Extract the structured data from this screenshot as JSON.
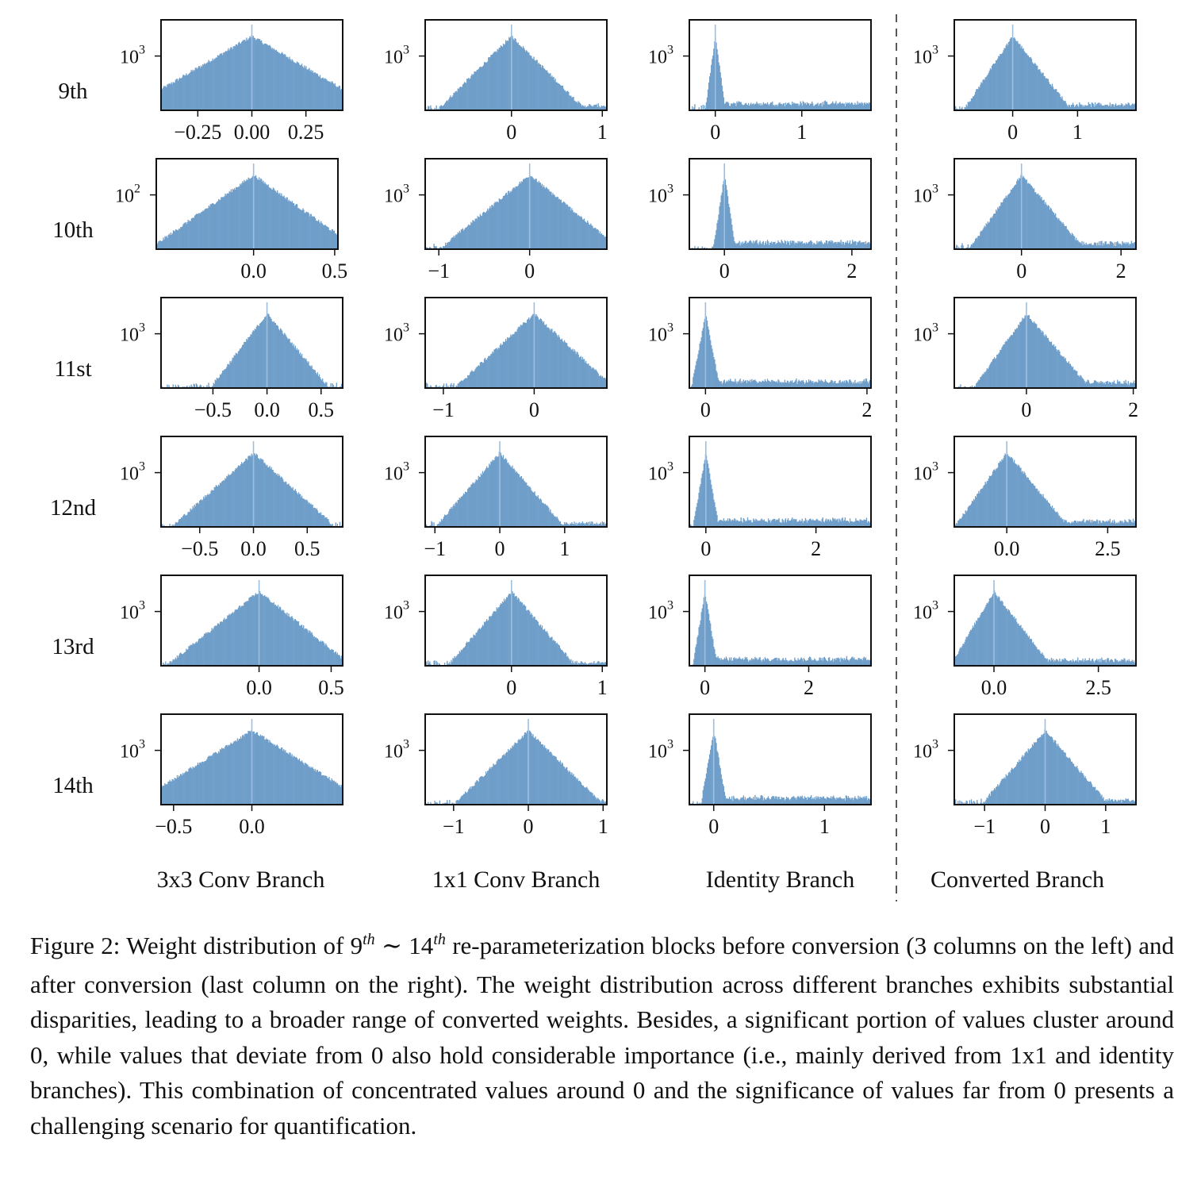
{
  "chart_data": {
    "type": "bar",
    "title": "",
    "y_scale": "log",
    "grid": false,
    "bar_color": "#6f9ec9",
    "separator_style": "dashed vertical line between 3rd and 4th columns",
    "rows": [
      "9th",
      "10th",
      "11st",
      "12nd",
      "13rd",
      "14th"
    ],
    "columns": [
      "3x3 Conv Branch",
      "1x1 Conv Branch",
      "Identity Branch",
      "Converted Branch"
    ],
    "panels": [
      [
        {
          "x_range": [
            -0.42,
            0.42
          ],
          "ticks": [
            -0.25,
            0.0,
            0.25
          ],
          "tick_labels": [
            "−0.25",
            "0.00",
            "0.25"
          ],
          "ytick": "10^3",
          "center": 0.0,
          "spread": 0.1,
          "skew": 1.0,
          "right_tail": 0,
          "spike": 1
        },
        {
          "x_range": [
            -0.95,
            1.05
          ],
          "ticks": [
            0,
            1
          ],
          "tick_labels": [
            "0",
            "1"
          ],
          "ytick": "10^3",
          "center": 0.0,
          "spread": 0.14,
          "skew": 1.0,
          "right_tail": 0.4,
          "spike": 1
        },
        {
          "x_range": [
            -0.3,
            1.8
          ],
          "ticks": [
            0,
            1
          ],
          "tick_labels": [
            "0",
            "1"
          ],
          "ytick": "10^3",
          "center": 0.0,
          "spread": 0.02,
          "skew": 1.0,
          "right_tail": 0.6,
          "spike": 1
        },
        {
          "x_range": [
            -0.9,
            1.9
          ],
          "ticks": [
            0,
            1
          ],
          "tick_labels": [
            "0",
            "1"
          ],
          "ytick": "10^3",
          "center": 0.0,
          "spread": 0.13,
          "skew": 1.2,
          "right_tail": 0.5,
          "spike": 1
        }
      ],
      [
        {
          "x_range": [
            -0.6,
            0.52
          ],
          "ticks": [
            0.0,
            0.5
          ],
          "tick_labels": [
            "0.0",
            "0.5"
          ],
          "ytick": "10^2",
          "center": 0.0,
          "spread": 0.11,
          "skew": 1.0,
          "right_tail": 0,
          "spike": 1
        },
        {
          "x_range": [
            -1.15,
            0.85
          ],
          "ticks": [
            -1,
            0
          ],
          "tick_labels": [
            "−1",
            "0"
          ],
          "ytick": "10^3",
          "center": 0.0,
          "spread": 0.17,
          "skew": 1.0,
          "right_tail": 0.2,
          "spike": 1
        },
        {
          "x_range": [
            -0.55,
            2.3
          ],
          "ticks": [
            0,
            2
          ],
          "tick_labels": [
            "0",
            "2"
          ],
          "ytick": "10^3",
          "center": 0.0,
          "spread": 0.03,
          "skew": 1.0,
          "right_tail": 0.6,
          "spike": 1
        },
        {
          "x_range": [
            -1.35,
            2.3
          ],
          "ticks": [
            0,
            2
          ],
          "tick_labels": [
            "0",
            "2"
          ],
          "ytick": "10^3",
          "center": 0.0,
          "spread": 0.18,
          "skew": 1.2,
          "right_tail": 0.5,
          "spike": 1
        }
      ],
      [
        {
          "x_range": [
            -0.98,
            0.7
          ],
          "ticks": [
            -0.5,
            0.0,
            0.5
          ],
          "tick_labels": [
            "−0.5",
            "0.0",
            "0.5"
          ],
          "ytick": "10^3",
          "center": 0.0,
          "spread": 0.09,
          "skew": 1.1,
          "right_tail": 0,
          "spike": 1
        },
        {
          "x_range": [
            -1.2,
            0.8
          ],
          "ticks": [
            -1,
            0
          ],
          "tick_labels": [
            "−1",
            "0"
          ],
          "ytick": "10^3",
          "center": 0.0,
          "spread": 0.15,
          "skew": 1.0,
          "right_tail": 0.3,
          "spike": 1
        },
        {
          "x_range": [
            -0.2,
            2.05
          ],
          "ticks": [
            0,
            2
          ],
          "tick_labels": [
            "0",
            "2"
          ],
          "ytick": "10^3",
          "center": 0.0,
          "spread": 0.03,
          "skew": 1.0,
          "right_tail": 0.6,
          "spike": 1
        },
        {
          "x_range": [
            -1.35,
            2.05
          ],
          "ticks": [
            0,
            2
          ],
          "tick_labels": [
            "0",
            "2"
          ],
          "ytick": "10^3",
          "center": 0.0,
          "spread": 0.17,
          "skew": 1.2,
          "right_tail": 0.5,
          "spike": 1
        }
      ],
      [
        {
          "x_range": [
            -0.86,
            0.83
          ],
          "ticks": [
            -0.5,
            0.0,
            0.5
          ],
          "tick_labels": [
            "−0.5",
            "0.0",
            "0.5"
          ],
          "ytick": "10^3",
          "center": 0.0,
          "spread": 0.13,
          "skew": 1.0,
          "right_tail": 0,
          "spike": 1
        },
        {
          "x_range": [
            -1.15,
            1.65
          ],
          "ticks": [
            -1,
            0,
            1
          ],
          "tick_labels": [
            "−1",
            "0",
            "1"
          ],
          "ytick": "10^3",
          "center": 0.0,
          "spread": 0.17,
          "skew": 1.0,
          "right_tail": 0.3,
          "spike": 1
        },
        {
          "x_range": [
            -0.3,
            3.0
          ],
          "ticks": [
            0,
            2
          ],
          "tick_labels": [
            "0",
            "2"
          ],
          "ytick": "10^3",
          "center": 0.0,
          "spread": 0.04,
          "skew": 1.0,
          "right_tail": 0.6,
          "spike": 1
        },
        {
          "x_range": [
            -1.3,
            3.2
          ],
          "ticks": [
            0.0,
            2.5
          ],
          "tick_labels": [
            "0.0",
            "2.5"
          ],
          "ytick": "10^3",
          "center": 0.0,
          "spread": 0.22,
          "skew": 1.2,
          "right_tail": 0.5,
          "spike": 1
        }
      ],
      [
        {
          "x_range": [
            -0.68,
            0.58
          ],
          "ticks": [
            0.0,
            0.5
          ],
          "tick_labels": [
            "0.0",
            "0.5"
          ],
          "ytick": "10^3",
          "center": 0.0,
          "spread": 0.11,
          "skew": 1.0,
          "right_tail": 0,
          "spike": 1
        },
        {
          "x_range": [
            -0.95,
            1.05
          ],
          "ticks": [
            0,
            1
          ],
          "tick_labels": [
            "0",
            "1"
          ],
          "ytick": "10^3",
          "center": 0.0,
          "spread": 0.12,
          "skew": 1.0,
          "right_tail": 0.3,
          "spike": 1
        },
        {
          "x_range": [
            -0.3,
            3.2
          ],
          "ticks": [
            0,
            2
          ],
          "tick_labels": [
            "0",
            "2"
          ],
          "ytick": "10^3",
          "center": 0.0,
          "spread": 0.04,
          "skew": 1.0,
          "right_tail": 0.6,
          "spike": 1
        },
        {
          "x_range": [
            -0.95,
            3.4
          ],
          "ticks": [
            0.0,
            2.5
          ],
          "tick_labels": [
            "0.0",
            "2.5"
          ],
          "ytick": "10^3",
          "center": 0.0,
          "spread": 0.18,
          "skew": 1.3,
          "right_tail": 0.5,
          "spike": 1
        }
      ],
      [
        {
          "x_range": [
            -0.58,
            0.58
          ],
          "ticks": [
            -0.5,
            0.0
          ],
          "tick_labels": [
            "−0.5",
            "0.0"
          ],
          "ytick": "10^3",
          "center": 0.0,
          "spread": 0.13,
          "skew": 1.0,
          "right_tail": 0,
          "spike": 1
        },
        {
          "x_range": [
            -1.38,
            1.05
          ],
          "ticks": [
            -1,
            0,
            1
          ],
          "tick_labels": [
            "−1",
            "0",
            "1"
          ],
          "ytick": "10^3",
          "center": 0.0,
          "spread": 0.17,
          "skew": 1.0,
          "right_tail": 0.3,
          "spike": 1
        },
        {
          "x_range": [
            -0.22,
            1.42
          ],
          "ticks": [
            0,
            1
          ],
          "tick_labels": [
            "0",
            "1"
          ],
          "ytick": "10^3",
          "center": 0.0,
          "spread": 0.02,
          "skew": 1.0,
          "right_tail": 0.6,
          "spike": 1
        },
        {
          "x_range": [
            -1.5,
            1.5
          ],
          "ticks": [
            -1,
            0,
            1
          ],
          "tick_labels": [
            "−1",
            "0",
            "1"
          ],
          "ytick": "10^3",
          "center": 0.0,
          "spread": 0.18,
          "skew": 1.0,
          "right_tail": 0.4,
          "spike": 1
        }
      ]
    ]
  },
  "caption": {
    "prefix": "Figure 2: Weight distribution of 9",
    "sup1": "th",
    "mid": " ∼ 14",
    "sup2": "th",
    "rest": " re-parameterization blocks before conversion (3 columns on the left) and after conversion (last column on the right).  The weight distribution across different branches exhibits substantial disparities, leading to a broader range of converted weights. Besides, a significant portion of values cluster around 0, while values that deviate from 0 also hold considerable importance (i.e., mainly derived from 1x1 and identity branches).  This combination of concentrated values around 0 and the significance of values far from 0 presents a challenging scenario for quantification."
  }
}
